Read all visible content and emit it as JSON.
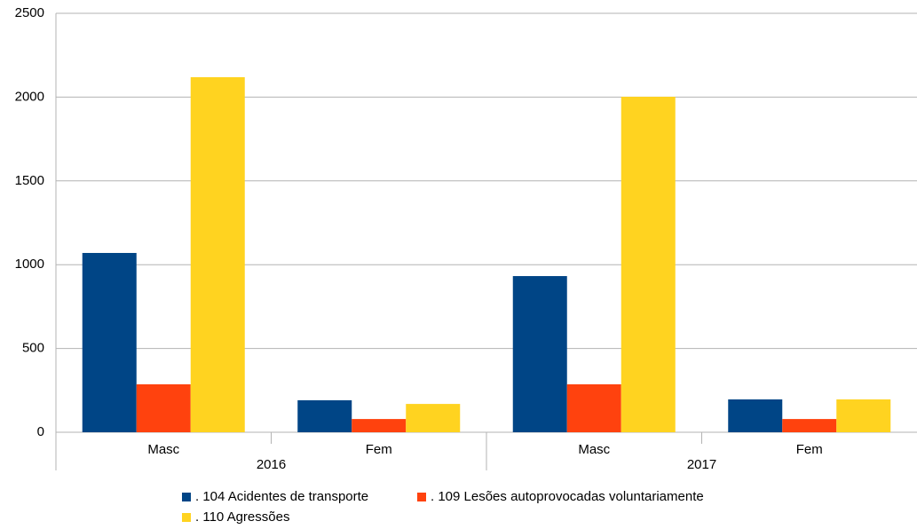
{
  "chart_data": {
    "type": "bar",
    "categories": [
      "Masc",
      "Fem",
      "Masc",
      "Fem"
    ],
    "category_groups": [
      "2016",
      "2017"
    ],
    "series": [
      {
        "name": ". 104 Acidentes de transporte",
        "color": "#004586",
        "values": [
          1070,
          191,
          932,
          196
        ]
      },
      {
        "name": ". 109 Lesões autoprovocadas voluntariamente",
        "color": "#ff420e",
        "values": [
          286,
          79,
          286,
          79
        ]
      },
      {
        "name": ". 110 Agressões",
        "color": "#ffd320",
        "values": [
          2119,
          169,
          2002,
          196
        ]
      }
    ],
    "ylim": [
      0,
      2500
    ],
    "yticks": [
      0,
      500,
      1000,
      1500,
      2000,
      2500
    ],
    "grid": true
  }
}
